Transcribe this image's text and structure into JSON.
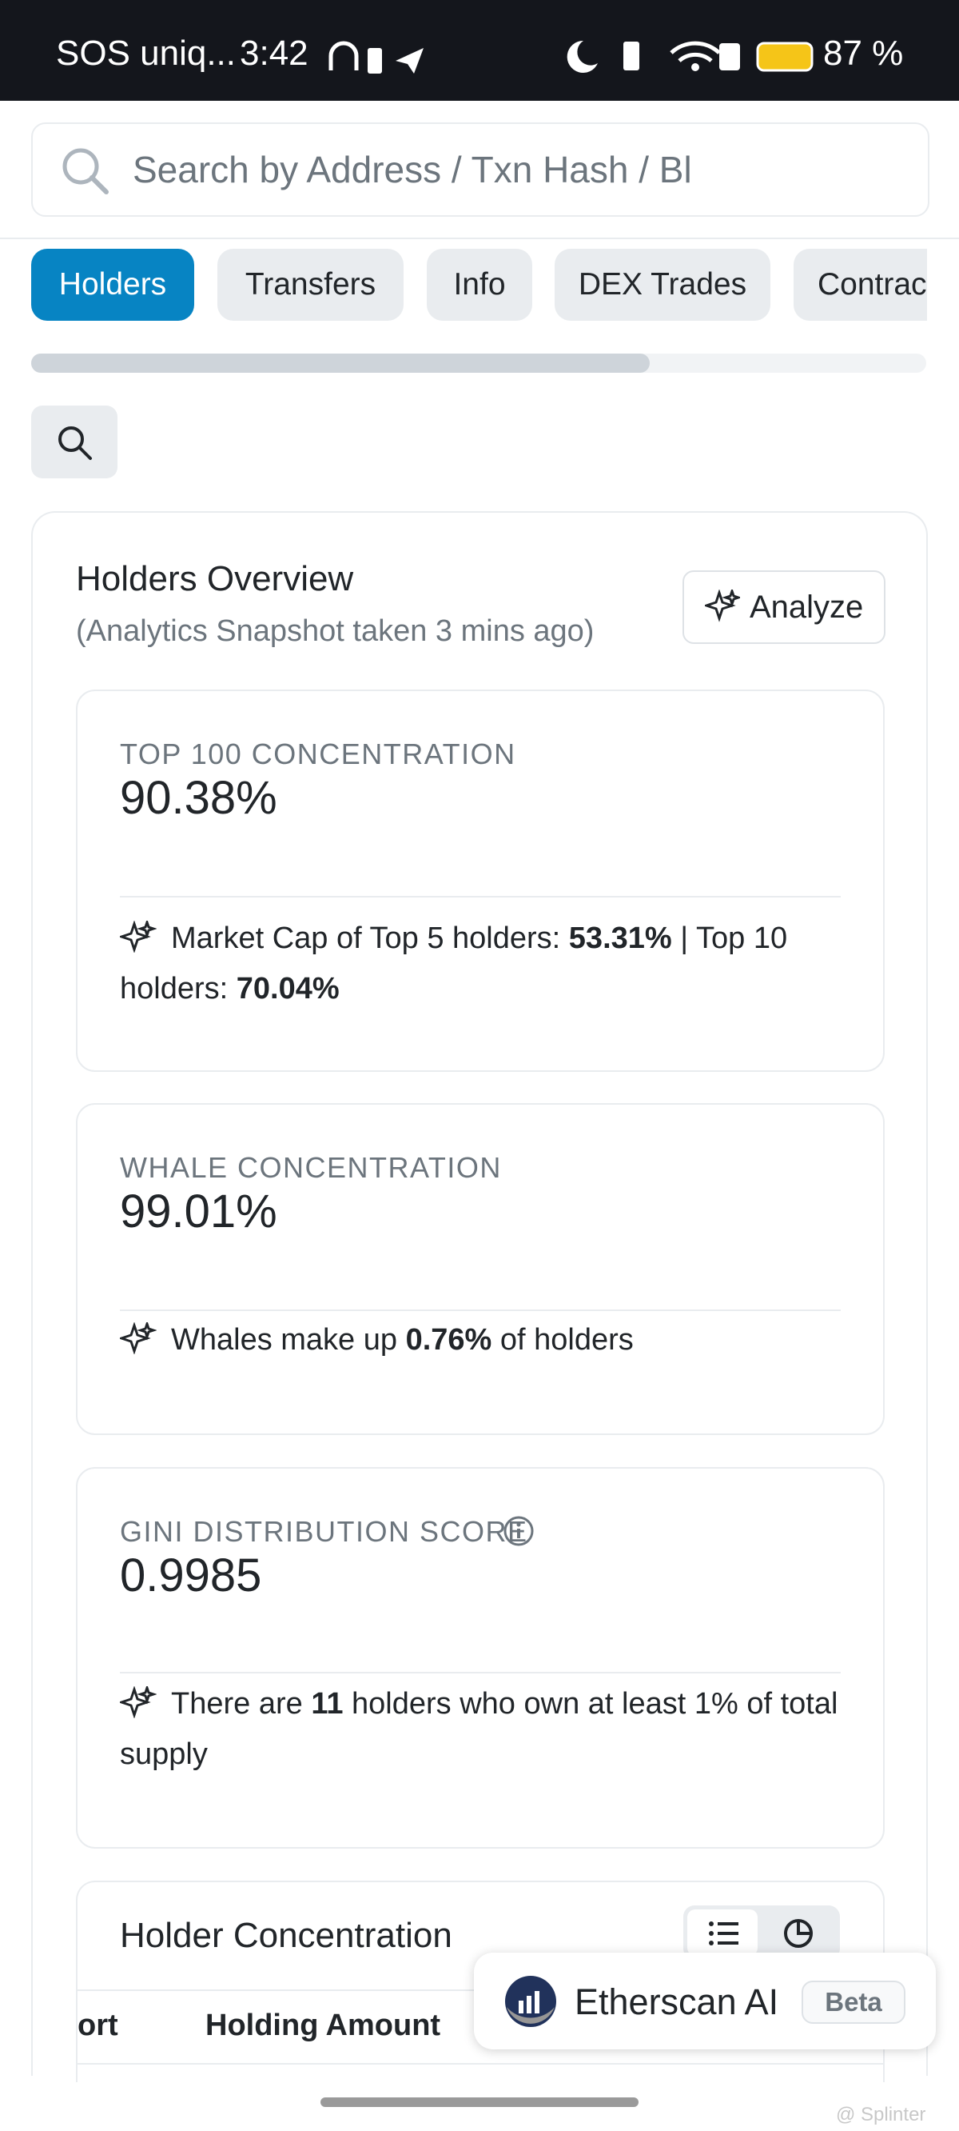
{
  "status_bar": {
    "carrier": "SOS uniq...",
    "time": "3:42",
    "battery": "87 %"
  },
  "search": {
    "placeholder": "Search by Address / Txn Hash / Bl"
  },
  "tabs": [
    "Holders",
    "Transfers",
    "Info",
    "DEX Trades",
    "Contrac"
  ],
  "overview": {
    "title": "Holders Overview",
    "subtitle": "(Analytics Snapshot taken 3 mins ago)",
    "button": "Analyze",
    "cards": [
      {
        "label": "TOP 100 CONCENTRATION",
        "value": "90.38%",
        "note": [
          "Market Cap of Top 5 holders: ",
          "53.31%",
          " | Top 10 holders: ",
          "70.04%"
        ]
      },
      {
        "label": "WHALE CONCENTRATION",
        "value": "99.01%",
        "note": [
          "Whales make up ",
          "0.76%",
          " of holders"
        ]
      },
      {
        "label": "GINI DISTRIBUTION SCORE",
        "value": "0.9985",
        "note": [
          "There are ",
          "11",
          " holders who own at least 1% of total supply"
        ]
      }
    ]
  },
  "concentration": {
    "title": "Holder Concentration",
    "columns": [
      "ort",
      "Holding Amount"
    ]
  },
  "assistant": {
    "name": "Etherscan AI",
    "badge": "Beta"
  },
  "watermark": "@ Splinter"
}
